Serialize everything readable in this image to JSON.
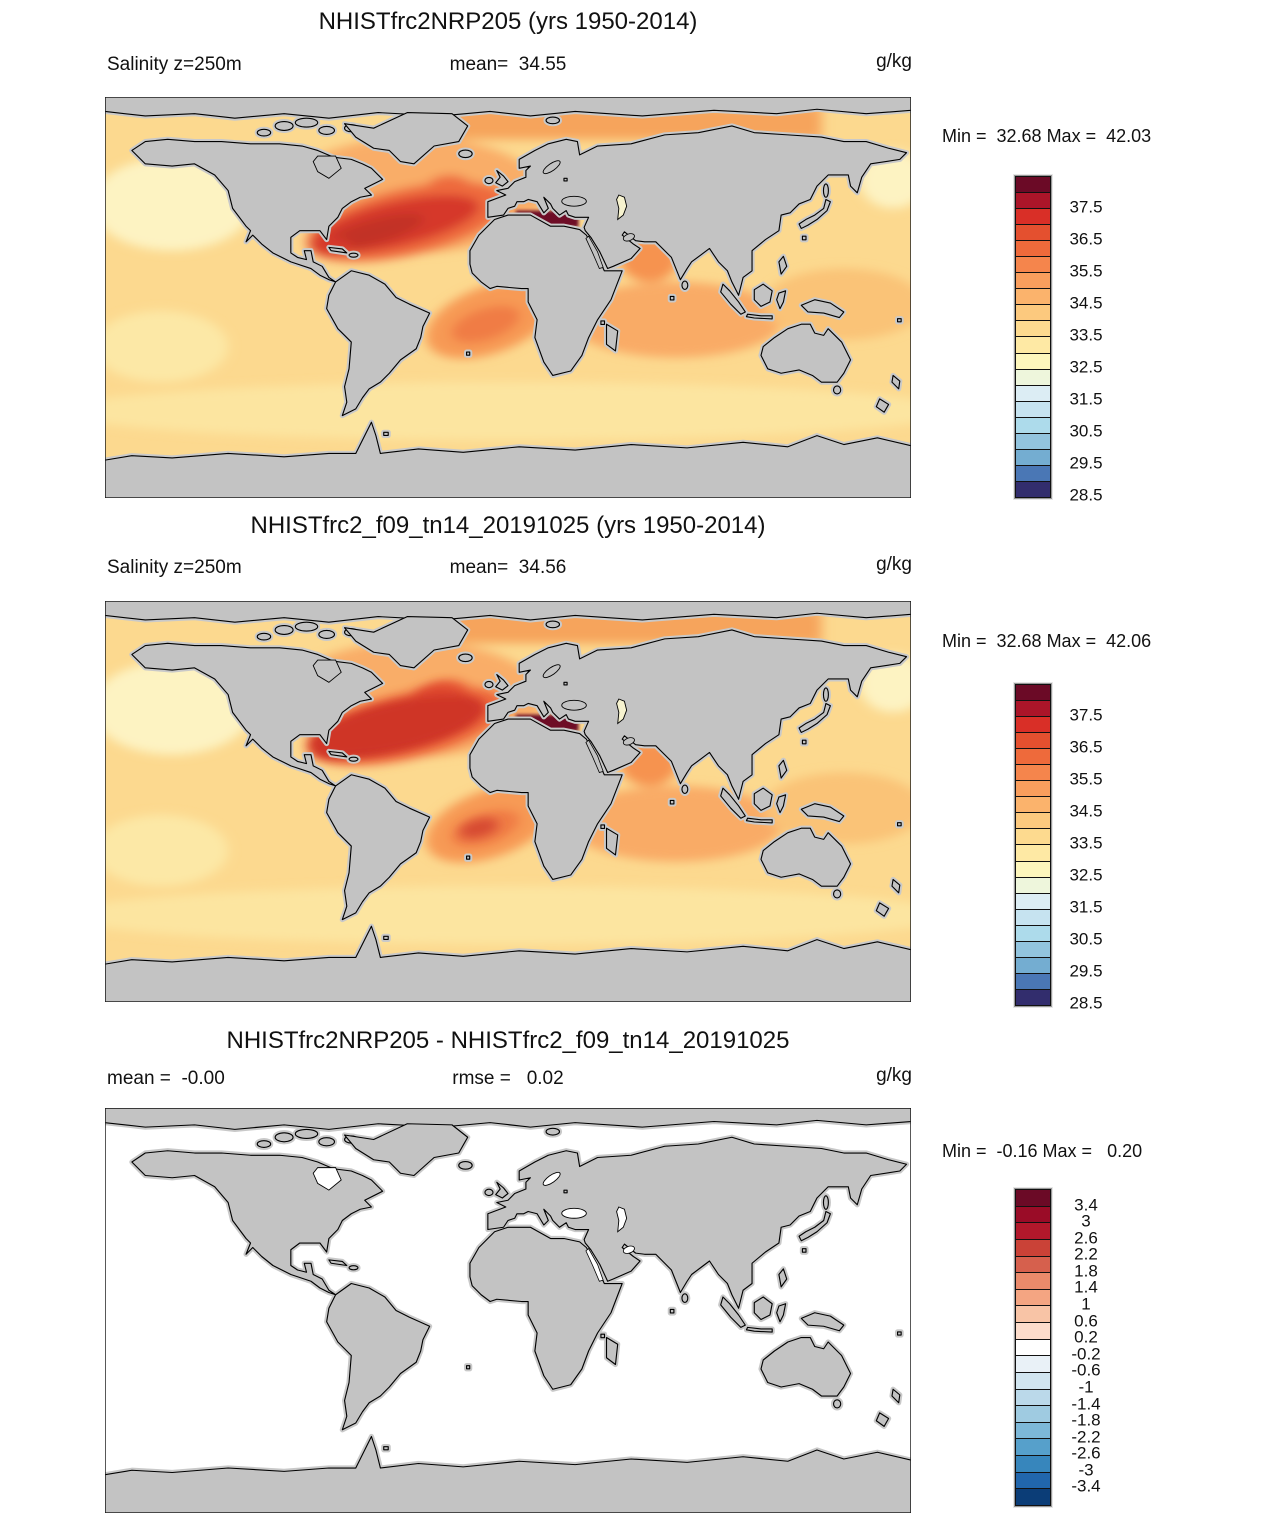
{
  "figure": {
    "variable": "Salinity",
    "level": "z=250m",
    "unit": "g/kg"
  },
  "panels": [
    {
      "title": "NHISTfrc2NRP205 (yrs 1950-2014)",
      "left_label": "Salinity z=250m",
      "center_label": "mean=  34.55",
      "unit_label": "g/kg",
      "min_max_label": "Min =  32.68 Max =  42.03",
      "map_style": "salinity",
      "colorbar_key": "salinity"
    },
    {
      "title": "NHISTfrc2_f09_tn14_20191025 (yrs 1950-2014)",
      "left_label": "Salinity z=250m",
      "center_label": "mean=  34.56",
      "unit_label": "g/kg",
      "min_max_label": "Min =  32.68 Max =  42.06",
      "map_style": "salinity2",
      "colorbar_key": "salinity"
    },
    {
      "title": "NHISTfrc2NRP205 - NHISTfrc2_f09_tn14_20191025",
      "left_label": "mean =  -0.00",
      "center_label": "rmse =   0.02",
      "unit_label": "g/kg",
      "min_max_label": "Min =  -0.16 Max =   0.20",
      "map_style": "diff",
      "colorbar_key": "diff"
    }
  ],
  "colorbars": {
    "salinity": {
      "colors": [
        "#6b0a26",
        "#ab1529",
        "#d92f27",
        "#e4502f",
        "#ee6a3b",
        "#f5854c",
        "#f99e5d",
        "#fbb36c",
        "#fcc97e",
        "#fdda8f",
        "#fee9a4",
        "#fdf6bc",
        "#eef6dc",
        "#dcedf4",
        "#c6e3f0",
        "#addbeb",
        "#92c4de",
        "#74add1",
        "#4a77b5",
        "#322d6d"
      ],
      "tick_labels": [
        "37.5",
        "36.5",
        "35.5",
        "34.5",
        "33.5",
        "32.5",
        "31.5",
        "30.5",
        "29.5",
        "28.5"
      ],
      "tick_start_boundary": 2,
      "tick_step": 2
    },
    "diff": {
      "colors": [
        "#6b0a26",
        "#9a0c27",
        "#b2182b",
        "#ca4237",
        "#d6604d",
        "#ea8a6b",
        "#f4a582",
        "#f8c4a6",
        "#fcdccb",
        "#ffffff",
        "#e9f1f7",
        "#d1e5f0",
        "#bbd9ea",
        "#9fcbe1",
        "#7db8d8",
        "#56a0cb",
        "#3786bc",
        "#2166ac",
        "#0b3d77"
      ],
      "tick_labels": [
        "3.4",
        "3",
        "2.6",
        "2.2",
        "1.8",
        "1.4",
        "1",
        "0.6",
        "0.2",
        "-0.2",
        "-0.6",
        "-1",
        "-1.4",
        "-1.8",
        "-2.2",
        "-2.6",
        "-3",
        "-3.4"
      ],
      "tick_start_boundary": 1,
      "tick_step": 1
    }
  },
  "map_colors": {
    "land": "#c3c3c3",
    "coastline": "#000000",
    "ocean_salinity_base": "#fcd98f",
    "ocean_diff": "#ffffff",
    "caspian_salinity": "#f7f3cf",
    "mediterranean_high": "#6e0b28",
    "north_atlantic_high": "#d6392b"
  },
  "chart_data": [
    {
      "type": "heatmap",
      "projection": "equirectangular world map",
      "title": "NHISTfrc2NRP205 (yrs 1950-2014)",
      "variable": "Salinity",
      "level": "z=250m",
      "units": "g/kg",
      "mean": 34.55,
      "min": 32.68,
      "max": 42.03,
      "colorbar_tick_values": [
        37.5,
        36.5,
        35.5,
        34.5,
        33.5,
        32.5,
        31.5,
        30.5,
        29.5,
        28.5
      ],
      "colorbar_interval": 0.5,
      "legend_position": "right",
      "description": "Global salinity at 250 m: highest values (dark red >38, up to 42) in the Mediterranean, strong red maximum (36.5-38) across the subtropical North Atlantic into the Caribbean, orange (35-36.5) in Arabian Sea, South Atlantic and Indian subtropics, pale yellow (33-34.5) in the North and South Pacific; land masked gray."
    },
    {
      "type": "heatmap",
      "projection": "equirectangular world map",
      "title": "NHISTfrc2_f09_tn14_20191025 (yrs 1950-2014)",
      "variable": "Salinity",
      "level": "z=250m",
      "units": "g/kg",
      "mean": 34.56,
      "min": 32.68,
      "max": 42.06,
      "colorbar_tick_values": [
        37.5,
        36.5,
        35.5,
        34.5,
        33.5,
        32.5,
        31.5,
        30.5,
        29.5,
        28.5
      ],
      "colorbar_interval": 0.5,
      "legend_position": "right",
      "description": "Nearly identical pattern to panel 1; North Atlantic red maximum slightly broader and a small stronger spot in the tropical South Atlantic."
    },
    {
      "type": "heatmap",
      "projection": "equirectangular world map",
      "title": "NHISTfrc2NRP205 - NHISTfrc2_f09_tn14_20191025",
      "variable": "Salinity difference",
      "level": "z=250m",
      "units": "g/kg",
      "mean": "-0.00",
      "rmse": 0.02,
      "min": -0.16,
      "max": 0.2,
      "colorbar_tick_values": [
        3.4,
        3,
        2.6,
        2.2,
        1.8,
        1.4,
        1,
        0.6,
        0.2,
        -0.2,
        -0.6,
        -1,
        -1.4,
        -1.8,
        -2.2,
        -2.6,
        -3,
        -3.4
      ],
      "colorbar_interval": 0.4,
      "legend_position": "right",
      "description": "Difference field is essentially zero everywhere: ocean renders white (within -0.2 to 0.2 bin); land masked gray."
    }
  ]
}
